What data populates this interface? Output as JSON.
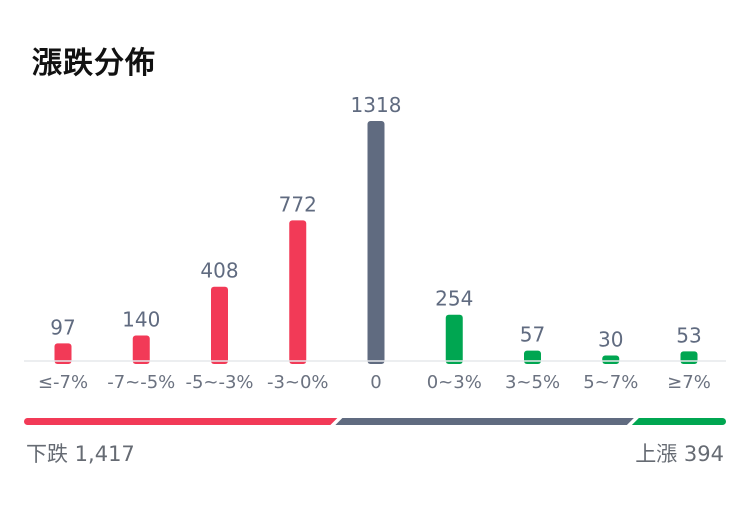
{
  "title": "漲跌分佈",
  "chart_data": {
    "type": "bar",
    "title": "漲跌分佈",
    "categories": [
      "≤-7%",
      "-7~-5%",
      "-5~-3%",
      "-3~0%",
      "0",
      "0~3%",
      "3~5%",
      "5~7%",
      "≥7%"
    ],
    "values": [
      97,
      140,
      408,
      772,
      1318,
      254,
      57,
      30,
      53
    ],
    "value_labels": [
      "97",
      "140",
      "408",
      "772",
      "1318",
      "254",
      "57",
      "30",
      "53"
    ],
    "bar_colors": [
      "#f23a57",
      "#f23a57",
      "#f23a57",
      "#f23a57",
      "#606b80",
      "#00a651",
      "#00a651",
      "#00a651",
      "#00a651"
    ],
    "ylim": [
      0,
      1318
    ],
    "grid": false,
    "xlabel": "",
    "ylabel": ""
  },
  "summary": {
    "down_label": "下跌 1,417",
    "up_label": "上漲 394",
    "down_count": 1417,
    "flat_count": 1318,
    "up_count": 394,
    "colors": {
      "down": "#f23a57",
      "flat": "#606b80",
      "up": "#00a651"
    }
  }
}
